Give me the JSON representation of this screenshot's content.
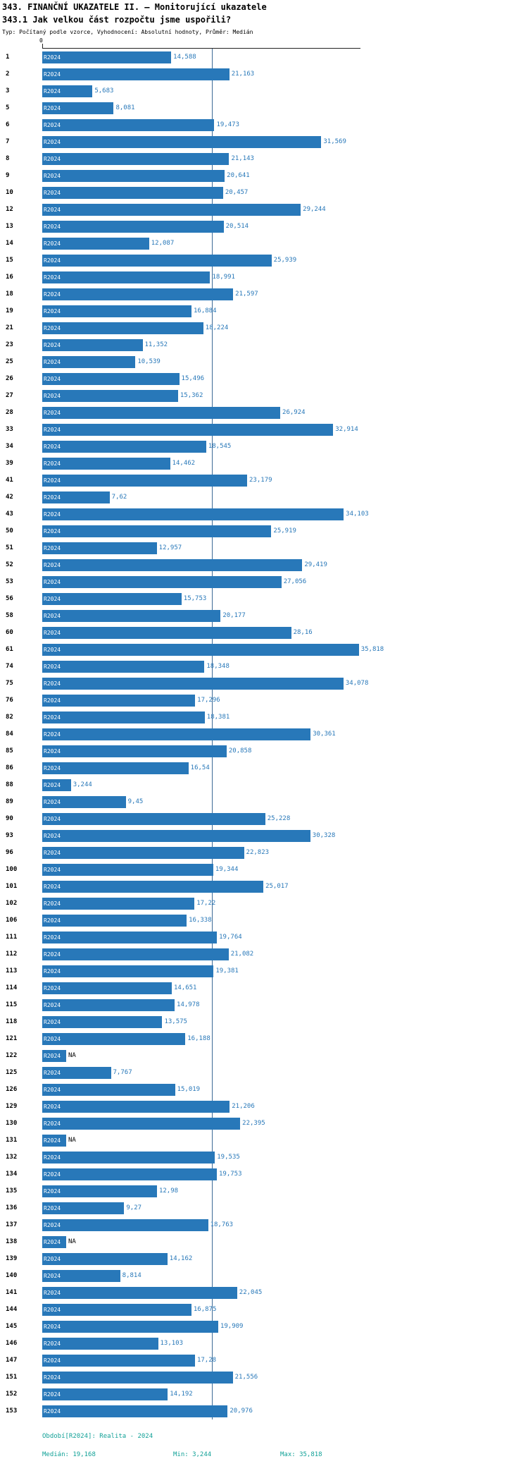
{
  "header": {
    "title": "343. FINANČNÍ UKAZATELE II. – Monitorující ukazatele",
    "subtitle": "343.1 Jak velkou část rozpočtu jsme uspořili?",
    "meta": "Typ: Počítaný podle vzorce, Vyhodnocení: Absolutní hodnoty, Průměr: Medián"
  },
  "chart_data": {
    "type": "bar",
    "orientation": "horizontal",
    "title": "343.1 Jak velkou část rozpočtu jsme uspořili?",
    "series_label": "R2024",
    "axis_zero_label": "0",
    "na_label": "NA",
    "xlim": [
      0,
      36
    ],
    "median": 19.168,
    "min": 3.244,
    "max": 35.818,
    "bar_color": "#2878b9",
    "categories": [
      1,
      2,
      3,
      5,
      6,
      7,
      8,
      9,
      10,
      12,
      13,
      14,
      15,
      16,
      18,
      19,
      21,
      23,
      25,
      26,
      27,
      28,
      33,
      34,
      39,
      41,
      42,
      43,
      50,
      51,
      52,
      53,
      56,
      58,
      60,
      61,
      74,
      75,
      76,
      82,
      84,
      85,
      86,
      88,
      89,
      90,
      93,
      96,
      100,
      101,
      102,
      106,
      111,
      112,
      113,
      114,
      115,
      118,
      121,
      122,
      125,
      126,
      129,
      130,
      131,
      132,
      134,
      135,
      136,
      137,
      138,
      139,
      140,
      141,
      144,
      145,
      146,
      147,
      151,
      152,
      153
    ],
    "values": [
      14.588,
      21.163,
      5.683,
      8.081,
      19.473,
      31.569,
      21.143,
      20.641,
      20.457,
      29.244,
      20.514,
      12.087,
      25.939,
      18.991,
      21.597,
      16.884,
      18.224,
      11.352,
      10.539,
      15.496,
      15.362,
      26.924,
      32.914,
      18.545,
      14.462,
      23.179,
      7.62,
      34.103,
      25.919,
      12.957,
      29.419,
      27.056,
      15.753,
      20.177,
      28.16,
      35.818,
      18.348,
      34.078,
      17.296,
      18.381,
      30.361,
      20.858,
      16.54,
      3.244,
      9.45,
      25.228,
      30.328,
      22.823,
      19.344,
      25.017,
      17.22,
      16.338,
      19.764,
      21.082,
      19.381,
      14.651,
      14.978,
      13.575,
      16.188,
      null,
      7.767,
      15.019,
      21.206,
      22.395,
      null,
      19.535,
      19.753,
      12.98,
      9.27,
      18.763,
      null,
      14.162,
      8.814,
      22.045,
      16.875,
      19.909,
      13.103,
      17.28,
      21.556,
      14.192,
      20.976
    ],
    "value_labels": [
      "14,588",
      "21,163",
      "5,683",
      "8,081",
      "19,473",
      "31,569",
      "21,143",
      "20,641",
      "20,457",
      "29,244",
      "20,514",
      "12,087",
      "25,939",
      "18,991",
      "21,597",
      "16,884",
      "18,224",
      "11,352",
      "10,539",
      "15,496",
      "15,362",
      "26,924",
      "32,914",
      "18,545",
      "14,462",
      "23,179",
      "7,62",
      "34,103",
      "25,919",
      "12,957",
      "29,419",
      "27,056",
      "15,753",
      "20,177",
      "28,16",
      "35,818",
      "18,348",
      "34,078",
      "17,296",
      "18,381",
      "30,361",
      "20,858",
      "16,54",
      "3,244",
      "9,45",
      "25,228",
      "30,328",
      "22,823",
      "19,344",
      "25,017",
      "17,22",
      "16,338",
      "19,764",
      "21,082",
      "19,381",
      "14,651",
      "14,978",
      "13,575",
      "16,188",
      "NA",
      "7,767",
      "15,019",
      "21,206",
      "22,395",
      "NA",
      "19,535",
      "19,753",
      "12,98",
      "9,27",
      "18,763",
      "NA",
      "14,162",
      "8,814",
      "22,045",
      "16,875",
      "19,909",
      "13,103",
      "17,28",
      "21,556",
      "14,192",
      "20,976"
    ]
  },
  "footer": {
    "period": "Období[R2024]: Realita - 2024",
    "median_label": "Medián: 19,168",
    "min_label": "Min: 3,244",
    "max_label": "Max: 35,818"
  }
}
